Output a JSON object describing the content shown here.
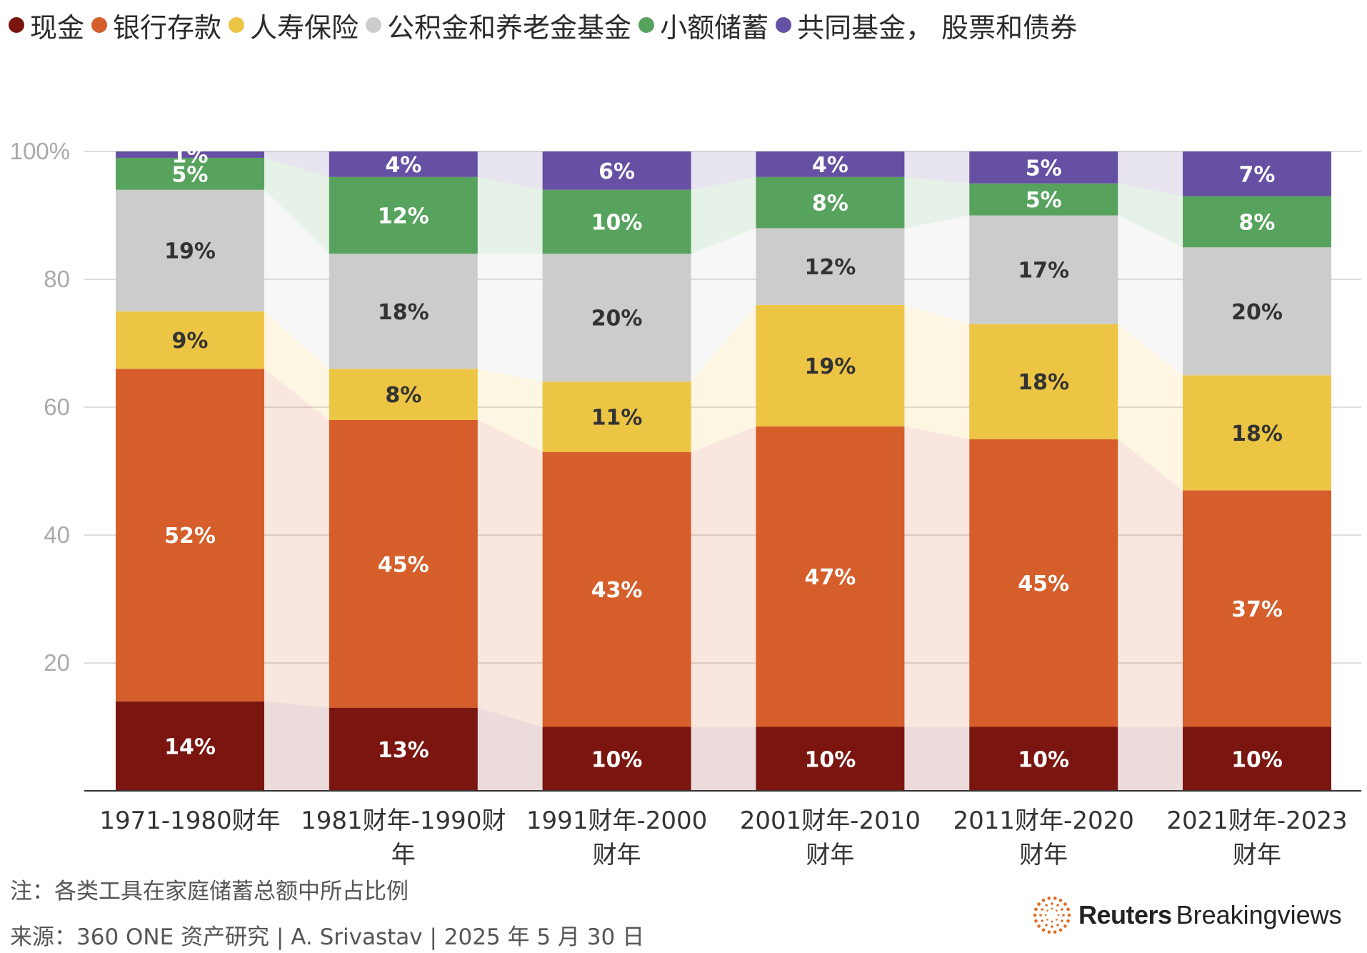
{
  "chart_data": {
    "type": "bar",
    "stacked": true,
    "categories": [
      "1971-1980财年",
      "1981财年-1990财年",
      "1991财年-2000财年",
      "2001财年-2010财年",
      "2011财年-2020财年",
      "2021财年-2023财年"
    ],
    "category_lines": [
      [
        "1971-1980财年"
      ],
      [
        "1981财年-1990财",
        "年"
      ],
      [
        "1991财年-2000",
        "财年"
      ],
      [
        "2001财年-2010",
        "财年"
      ],
      [
        "2011财年-2020",
        "财年"
      ],
      [
        "2021财年-2023",
        "财年"
      ]
    ],
    "series": [
      {
        "name": "现金",
        "color": "#7b1510",
        "label_color": "#ffffff",
        "values": [
          14,
          13,
          10,
          10,
          10,
          10
        ],
        "labels": [
          "14%",
          "13%",
          "10%",
          "10%",
          "10%",
          "10%"
        ]
      },
      {
        "name": "银行存款",
        "color": "#d55e2a",
        "label_color": "#ffffff",
        "values": [
          52,
          45,
          43,
          47,
          45,
          37
        ],
        "labels": [
          "52%",
          "45%",
          "43%",
          "47%",
          "45%",
          "37%"
        ]
      },
      {
        "name": "人寿保险",
        "color": "#edc545",
        "label_color": "#333333",
        "values": [
          9,
          8,
          11,
          19,
          18,
          18
        ],
        "labels": [
          "9%",
          "8%",
          "11%",
          "19%",
          "18%",
          "18%"
        ]
      },
      {
        "name": "公积金和养老金基金",
        "color": "#cccccc",
        "label_color": "#333333",
        "values": [
          19,
          18,
          20,
          12,
          17,
          20
        ],
        "labels": [
          "19%",
          "18%",
          "20%",
          "12%",
          "17%",
          "20%"
        ]
      },
      {
        "name": "小额储蓄",
        "color": "#57a35e",
        "label_color": "#ffffff",
        "values": [
          5,
          12,
          10,
          8,
          5,
          8
        ],
        "labels": [
          "5%",
          "12%",
          "10%",
          "8%",
          "5%",
          "8%"
        ]
      },
      {
        "name": "共同基金， 股票和债券",
        "color": "#6650a3",
        "label_color": "#ffffff",
        "values": [
          1,
          4,
          6,
          4,
          5,
          7
        ],
        "labels": [
          "1%",
          "4%",
          "6%",
          "4%",
          "5%",
          "7%"
        ]
      }
    ],
    "ylim": [
      0,
      100
    ],
    "yticks": [
      20,
      40,
      60,
      80,
      100
    ],
    "ytick_labels": [
      "20",
      "40",
      "60",
      "80",
      "100%"
    ],
    "grid": true,
    "legend_position": "top-left"
  },
  "note": "注：各类工具在家庭储蓄总额中所占比例",
  "source": "来源：360 ONE 资产研究 | A. Srivastav | 2025 年 5 月 30 日",
  "brand": {
    "strong": "Reuters",
    "light": "Breakingviews",
    "logo_icon": "reuters-dot-logo-icon",
    "logo_color": "#e06b1f"
  }
}
